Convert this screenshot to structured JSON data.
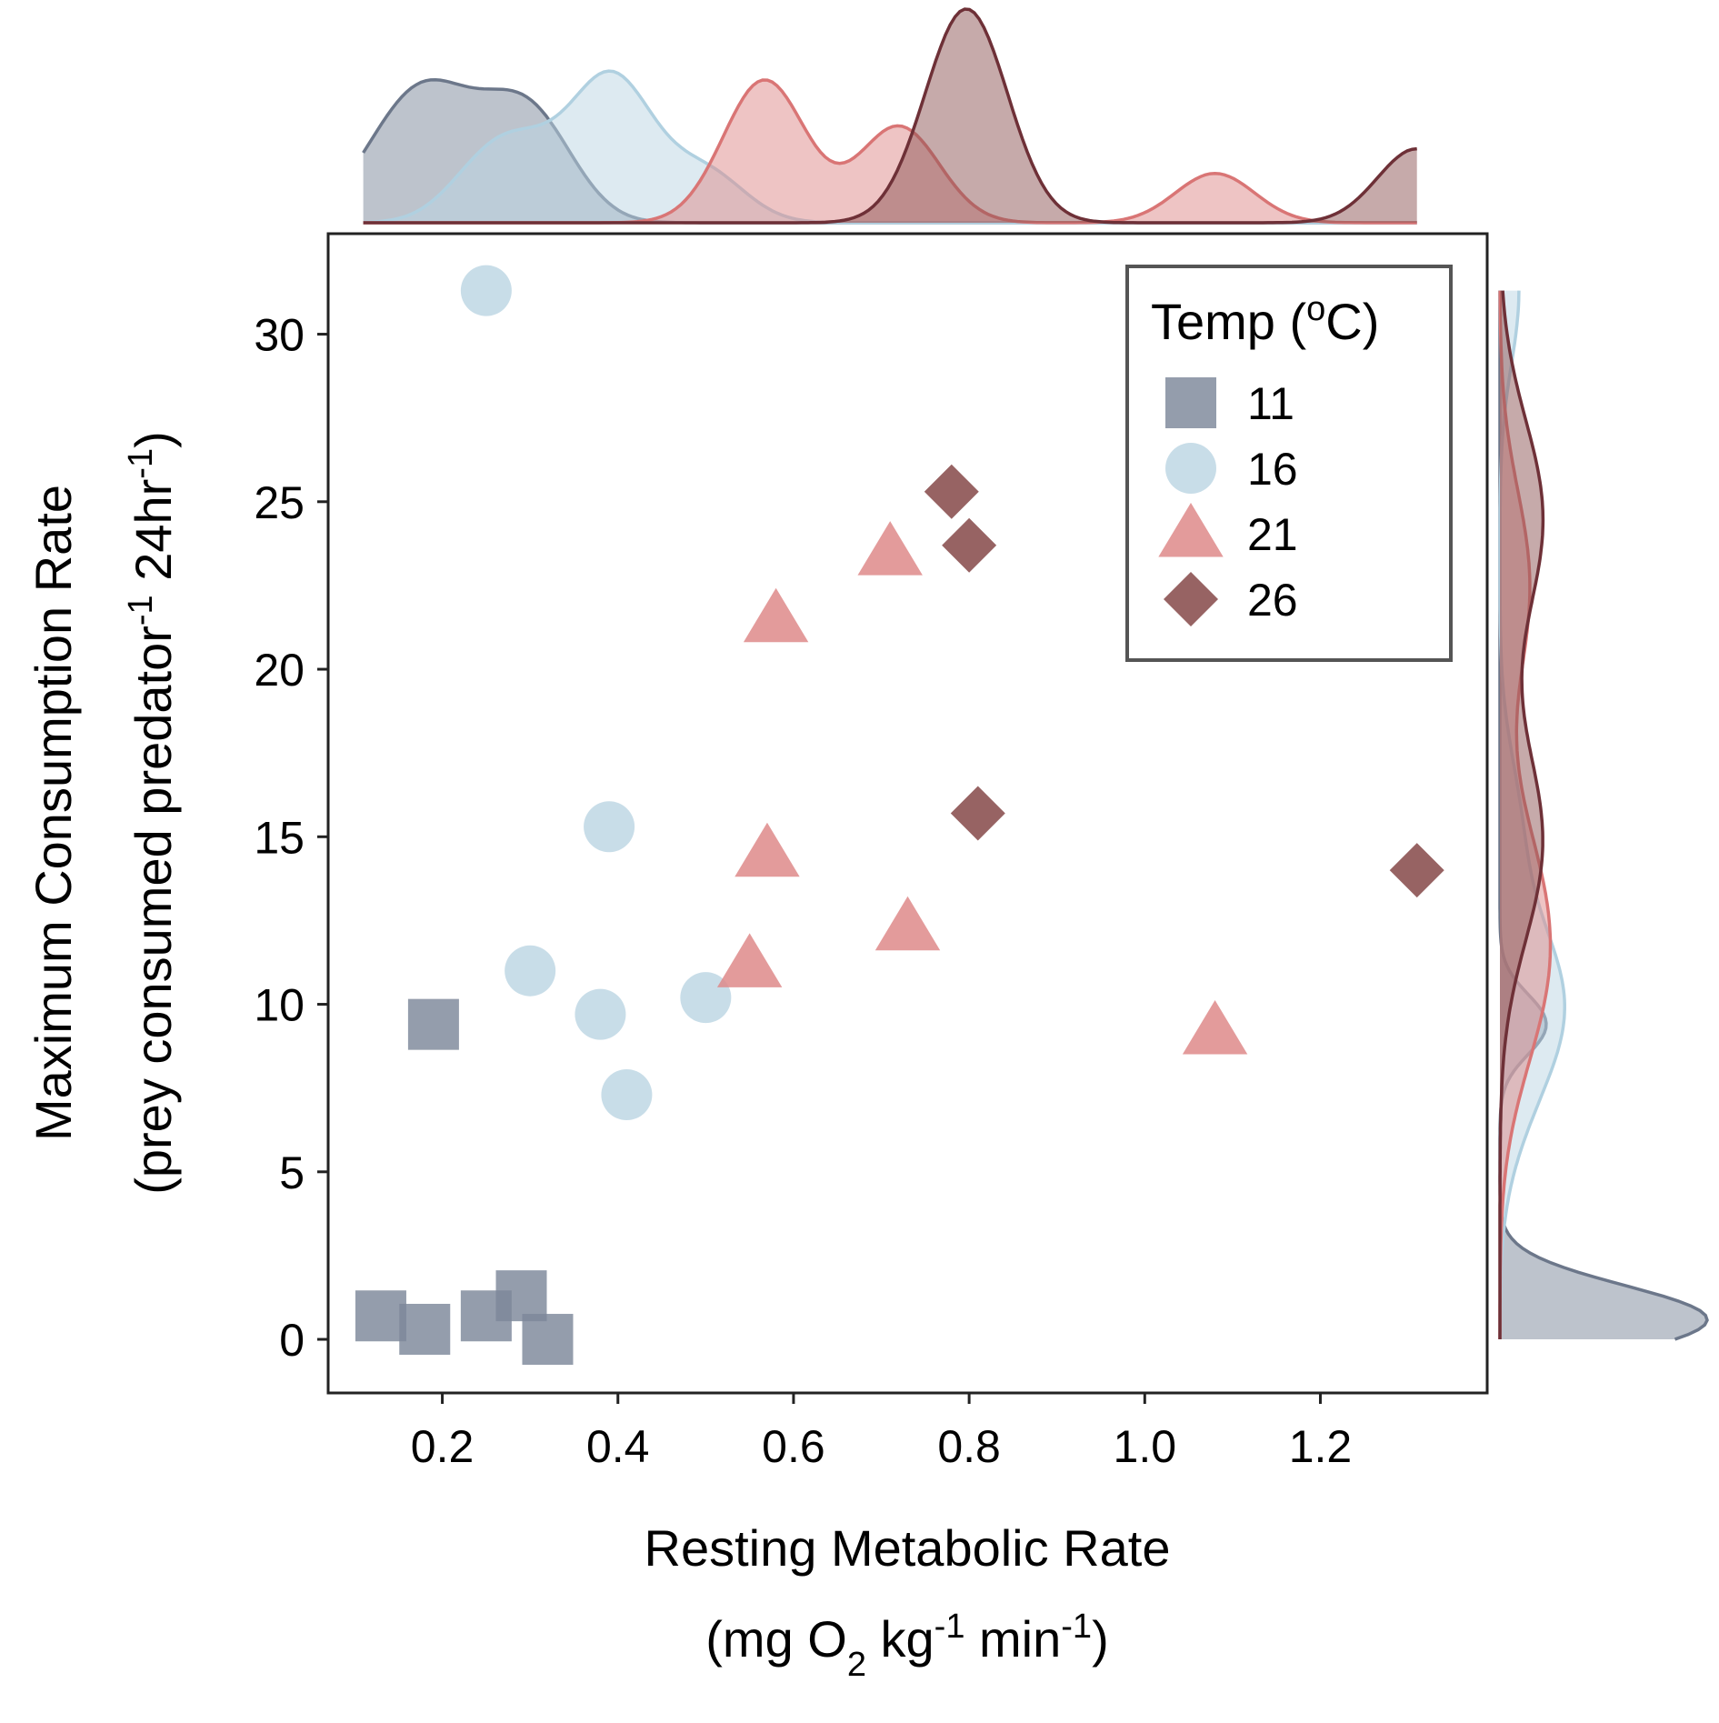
{
  "chart_data": {
    "type": "scatter",
    "xlabel": {
      "line1": "Resting Metabolic Rate",
      "line2_parts": [
        "(mg O",
        "2",
        " kg",
        "-1",
        " min",
        "-1",
        ")"
      ]
    },
    "ylabel": {
      "line1": "Maximum Consumption Rate",
      "line2_parts": [
        "(prey consumed predator",
        "-1",
        " 24hr",
        "-1",
        ")"
      ]
    },
    "xlim": [
      0.07,
      1.39
    ],
    "ylim": [
      -1.6,
      33.0
    ],
    "xticks": [
      0.2,
      0.4,
      0.6,
      0.8,
      1.0,
      1.2
    ],
    "xtick_labels": [
      "0.2",
      "0.4",
      "0.6",
      "0.8",
      "1.0",
      "1.2"
    ],
    "yticks": [
      0,
      5,
      10,
      15,
      20,
      25,
      30
    ],
    "ytick_labels": [
      "0",
      "5",
      "10",
      "15",
      "20",
      "25",
      "30"
    ],
    "grid": false,
    "legend": {
      "title_parts": [
        "Temp (",
        "o",
        "C)"
      ],
      "placement": "top-right"
    },
    "marginals": {
      "top": "density",
      "right": "density"
    },
    "series": [
      {
        "name": "11",
        "marker": "square",
        "color": "#7c879a",
        "points": [
          [
            0.19,
            9.4
          ],
          [
            0.13,
            0.7
          ],
          [
            0.18,
            0.3
          ],
          [
            0.25,
            0.7
          ],
          [
            0.29,
            1.3
          ],
          [
            0.32,
            0.0
          ]
        ]
      },
      {
        "name": "16",
        "marker": "circle",
        "color": "#bcd6e3",
        "points": [
          [
            0.25,
            31.3
          ],
          [
            0.39,
            15.3
          ],
          [
            0.3,
            11.0
          ],
          [
            0.38,
            9.7
          ],
          [
            0.5,
            10.2
          ],
          [
            0.41,
            7.3
          ]
        ]
      },
      {
        "name": "21",
        "marker": "triangle",
        "color": "#de8a8a",
        "points": [
          [
            0.71,
            23.5
          ],
          [
            0.58,
            21.5
          ],
          [
            0.57,
            14.5
          ],
          [
            0.55,
            11.2
          ],
          [
            0.73,
            12.3
          ],
          [
            1.08,
            9.2
          ]
        ]
      },
      {
        "name": "26",
        "marker": "diamond",
        "color": "#8e5656",
        "points": [
          [
            0.78,
            25.3
          ],
          [
            0.8,
            23.7
          ],
          [
            0.81,
            15.7
          ],
          [
            1.31,
            14.0
          ]
        ]
      }
    ],
    "marginal_styles": [
      {
        "name": "11",
        "fill": "#7c879a",
        "line": "#6c778a"
      },
      {
        "name": "16",
        "fill": "#bcd6e3",
        "line": "#b0d0e0"
      },
      {
        "name": "21",
        "fill": "#de8a8a",
        "line": "#d97575"
      },
      {
        "name": "26",
        "fill": "#8e5656",
        "line": "#6e3037"
      }
    ]
  }
}
